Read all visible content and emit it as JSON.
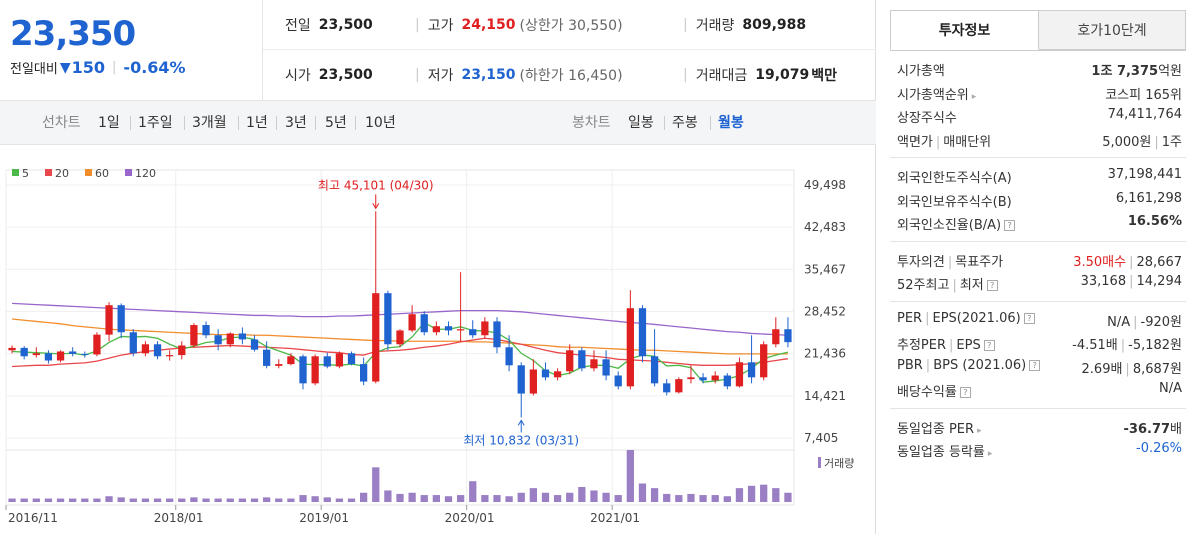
{
  "price": {
    "current": "23,350",
    "diff_label": "전일대비",
    "diff_symbol": "▼",
    "diff_value": "150",
    "diff_rate": "-0.64%"
  },
  "summary": {
    "prev_label": "전일",
    "prev_value": "23,500",
    "high_label": "고가",
    "high_value": "24,150",
    "upper_limit_label": "(상한가",
    "upper_limit_value": "30,550)",
    "volume_label": "거래량",
    "volume_value": "809,988",
    "open_label": "시가",
    "open_value": "23,500",
    "low_label": "저가",
    "low_value": "23,150",
    "lower_limit_label": "(하한가",
    "lower_limit_value": "16,450)",
    "amount_label": "거래대금",
    "amount_value": "19,079",
    "amount_unit": "백만"
  },
  "period_bar": {
    "line_chart_label": "선차트",
    "line_periods": [
      "1일",
      "1주일",
      "3개월",
      "1년",
      "3년",
      "5년",
      "10년"
    ],
    "candle_label": "봉차트",
    "candle_periods": [
      "일봉",
      "주봉",
      "월봉"
    ],
    "active_candle": "월봉"
  },
  "chart_data": {
    "type": "candlestick",
    "legend": [
      {
        "name": "5",
        "color": "#4cb848"
      },
      {
        "name": "20",
        "color": "#e8474b"
      },
      {
        "name": "60",
        "color": "#f28d2c"
      },
      {
        "name": "120",
        "color": "#9966cc"
      }
    ],
    "y_ticks": [
      "49,498",
      "42,483",
      "35,467",
      "28,452",
      "21,436",
      "14,421",
      "7,405"
    ],
    "ylim": [
      7405,
      49498
    ],
    "x_tick_labels": [
      "2016/11",
      "2018/01",
      "2019/01",
      "2020/01",
      "2021/01"
    ],
    "x_tick_index": [
      0,
      14,
      26,
      38,
      50
    ],
    "max_annotation": "최고 45,101 (04/30)",
    "min_annotation": "최저 10,832 (03/31)",
    "volume_label": "거래량",
    "up_color": "#e02020",
    "down_color": "#1e63d0",
    "candles": [
      {
        "o": 22000,
        "h": 22800,
        "l": 21500,
        "c": 22400
      },
      {
        "o": 22400,
        "h": 22700,
        "l": 20500,
        "c": 21000
      },
      {
        "o": 21200,
        "h": 22500,
        "l": 20800,
        "c": 21500
      },
      {
        "o": 21500,
        "h": 22000,
        "l": 19800,
        "c": 20300
      },
      {
        "o": 20300,
        "h": 22000,
        "l": 20000,
        "c": 21800
      },
      {
        "o": 21800,
        "h": 22500,
        "l": 21000,
        "c": 21400
      },
      {
        "o": 21400,
        "h": 21800,
        "l": 20800,
        "c": 21300
      },
      {
        "o": 21300,
        "h": 25000,
        "l": 21000,
        "c": 24600
      },
      {
        "o": 24600,
        "h": 30000,
        "l": 23500,
        "c": 29500
      },
      {
        "o": 29500,
        "h": 29800,
        "l": 24000,
        "c": 25000
      },
      {
        "o": 25000,
        "h": 25500,
        "l": 21000,
        "c": 21500
      },
      {
        "o": 21500,
        "h": 23500,
        "l": 21000,
        "c": 23000
      },
      {
        "o": 23000,
        "h": 23500,
        "l": 20500,
        "c": 21000
      },
      {
        "o": 21000,
        "h": 22000,
        "l": 20300,
        "c": 21200
      },
      {
        "o": 21200,
        "h": 23500,
        "l": 20500,
        "c": 22800
      },
      {
        "o": 22800,
        "h": 26500,
        "l": 22500,
        "c": 26200
      },
      {
        "o": 26200,
        "h": 26800,
        "l": 24000,
        "c": 24500
      },
      {
        "o": 24500,
        "h": 25500,
        "l": 22000,
        "c": 23000
      },
      {
        "o": 23000,
        "h": 25000,
        "l": 22500,
        "c": 24800
      },
      {
        "o": 24800,
        "h": 25800,
        "l": 23000,
        "c": 23800
      },
      {
        "o": 23800,
        "h": 24500,
        "l": 21800,
        "c": 22100
      },
      {
        "o": 22100,
        "h": 23500,
        "l": 19000,
        "c": 19400
      },
      {
        "o": 19400,
        "h": 20500,
        "l": 19000,
        "c": 19700
      },
      {
        "o": 19700,
        "h": 21500,
        "l": 19500,
        "c": 21000
      },
      {
        "o": 21000,
        "h": 21300,
        "l": 15500,
        "c": 16500
      },
      {
        "o": 16500,
        "h": 21300,
        "l": 16200,
        "c": 21000
      },
      {
        "o": 21000,
        "h": 21600,
        "l": 19000,
        "c": 19300
      },
      {
        "o": 19300,
        "h": 21800,
        "l": 19000,
        "c": 21500
      },
      {
        "o": 21500,
        "h": 21800,
        "l": 19500,
        "c": 19700
      },
      {
        "o": 19700,
        "h": 20800,
        "l": 16200,
        "c": 16800
      },
      {
        "o": 16800,
        "h": 45101,
        "l": 16500,
        "c": 31500
      },
      {
        "o": 31500,
        "h": 31900,
        "l": 22000,
        "c": 23000
      },
      {
        "o": 23000,
        "h": 25500,
        "l": 22500,
        "c": 25300
      },
      {
        "o": 25300,
        "h": 29500,
        "l": 25000,
        "c": 28000
      },
      {
        "o": 28000,
        "h": 28500,
        "l": 24500,
        "c": 25000
      },
      {
        "o": 25000,
        "h": 26800,
        "l": 24500,
        "c": 26000
      },
      {
        "o": 26000,
        "h": 26800,
        "l": 24500,
        "c": 25300
      },
      {
        "o": 25300,
        "h": 35000,
        "l": 23500,
        "c": 25500
      },
      {
        "o": 25500,
        "h": 27000,
        "l": 24000,
        "c": 24500
      },
      {
        "o": 24500,
        "h": 27500,
        "l": 24000,
        "c": 26800
      },
      {
        "o": 26800,
        "h": 27500,
        "l": 21500,
        "c": 22500
      },
      {
        "o": 22500,
        "h": 24500,
        "l": 18500,
        "c": 19500
      },
      {
        "o": 19500,
        "h": 20000,
        "l": 10832,
        "c": 14800
      },
      {
        "o": 14800,
        "h": 20500,
        "l": 14500,
        "c": 18800
      },
      {
        "o": 18800,
        "h": 20000,
        "l": 17000,
        "c": 17500
      },
      {
        "o": 17500,
        "h": 19000,
        "l": 17000,
        "c": 18500
      },
      {
        "o": 18500,
        "h": 23000,
        "l": 18000,
        "c": 22000
      },
      {
        "o": 22000,
        "h": 22500,
        "l": 18500,
        "c": 19000
      },
      {
        "o": 19000,
        "h": 22000,
        "l": 18500,
        "c": 20500
      },
      {
        "o": 20500,
        "h": 22000,
        "l": 17000,
        "c": 17800
      },
      {
        "o": 17800,
        "h": 18500,
        "l": 15500,
        "c": 16000
      },
      {
        "o": 16000,
        "h": 32000,
        "l": 15500,
        "c": 29000
      },
      {
        "o": 29000,
        "h": 29500,
        "l": 20000,
        "c": 21000
      },
      {
        "o": 21000,
        "h": 25500,
        "l": 16000,
        "c": 16500
      },
      {
        "o": 16500,
        "h": 17200,
        "l": 14500,
        "c": 15000
      },
      {
        "o": 15000,
        "h": 17500,
        "l": 14800,
        "c": 17200
      },
      {
        "o": 17200,
        "h": 19500,
        "l": 16500,
        "c": 17500
      },
      {
        "o": 17500,
        "h": 18200,
        "l": 16500,
        "c": 17000
      },
      {
        "o": 17000,
        "h": 18500,
        "l": 16500,
        "c": 17800
      },
      {
        "o": 17800,
        "h": 18200,
        "l": 15500,
        "c": 16000
      },
      {
        "o": 16000,
        "h": 20800,
        "l": 15800,
        "c": 20000
      },
      {
        "o": 20000,
        "h": 24500,
        "l": 16500,
        "c": 17500
      },
      {
        "o": 17500,
        "h": 23500,
        "l": 17000,
        "c": 23000
      },
      {
        "o": 23000,
        "h": 27500,
        "l": 22500,
        "c": 25500
      },
      {
        "o": 25500,
        "h": 27500,
        "l": 22500,
        "c": 23350
      }
    ],
    "ma": {
      "5": [
        21800,
        21700,
        21600,
        21500,
        21400,
        21500,
        21200,
        21900,
        23300,
        24300,
        24200,
        24300,
        24000,
        23000,
        22200,
        22700,
        23300,
        23500,
        24100,
        24200,
        23800,
        22600,
        21900,
        21200,
        19700,
        19600,
        19600,
        19500,
        19700,
        19400,
        21600,
        22400,
        22600,
        24200,
        26600,
        25500,
        25500,
        25900,
        25300,
        25200,
        24900,
        23700,
        21500,
        20300,
        18600,
        17800,
        18200,
        19200,
        19500,
        19500,
        19000,
        20600,
        21200,
        21000,
        19400,
        19500,
        19100,
        16700,
        16900,
        17200,
        17800,
        19000,
        20600,
        21200,
        21700
      ],
      "20": [
        19300,
        19400,
        19500,
        19500,
        19700,
        19800,
        19900,
        20200,
        20700,
        21200,
        21500,
        21800,
        22000,
        22200,
        22400,
        22500,
        22600,
        22700,
        22800,
        22700,
        22600,
        22500,
        22400,
        22300,
        22100,
        21900,
        21700,
        21600,
        21300,
        21200,
        21800,
        21900,
        22000,
        22200,
        22500,
        22700,
        23000,
        23400,
        23700,
        24000,
        23800,
        23400,
        23000,
        22500,
        22000,
        21600,
        21400,
        21200,
        21000,
        20800,
        20500,
        20400,
        20300,
        20200,
        20000,
        19800,
        19600,
        19500,
        19500,
        19500,
        19600,
        19800,
        20000,
        20300,
        20600
      ],
      "60": [
        27200,
        27000,
        26800,
        26600,
        26400,
        26100,
        25900,
        25700,
        25500,
        25400,
        25300,
        25200,
        25100,
        25000,
        24900,
        24800,
        24700,
        24600,
        24600,
        24600,
        24500,
        24500,
        24400,
        24300,
        24200,
        24100,
        24000,
        23900,
        23800,
        23700,
        23600,
        23600,
        23500,
        23500,
        23500,
        23500,
        23500,
        23500,
        23400,
        23400,
        23300,
        23200,
        23000,
        22900,
        22800,
        22600,
        22500,
        22500,
        22400,
        22300,
        22200,
        22100,
        22000,
        22000,
        21900,
        21800,
        21700,
        21600,
        21500,
        21400,
        21400,
        21400,
        21400,
        21400,
        21400
      ],
      "120": [
        29800,
        29700,
        29600,
        29500,
        29400,
        29300,
        29200,
        29100,
        29000,
        28900,
        28800,
        28700,
        28600,
        28500,
        28400,
        28300,
        28200,
        28100,
        28000,
        27900,
        27800,
        27800,
        27700,
        27700,
        27600,
        27600,
        27600,
        27700,
        27700,
        27800,
        27900,
        28000,
        28100,
        28200,
        28300,
        28400,
        28500,
        28600,
        28600,
        28600,
        28600,
        28500,
        28400,
        28200,
        28000,
        27800,
        27600,
        27400,
        27200,
        27000,
        26800,
        26600,
        26500,
        26300,
        26100,
        25900,
        25700,
        25500,
        25300,
        25100,
        25000,
        24800,
        24700,
        24600,
        24500
      ]
    },
    "volume": [
      3,
      3,
      3,
      3,
      3,
      3,
      3,
      3,
      5,
      4,
      3,
      3,
      3,
      3,
      3,
      4,
      3,
      3,
      3,
      3,
      3,
      4,
      3,
      3,
      6,
      5,
      4,
      3,
      3,
      8,
      30,
      10,
      7,
      8,
      6,
      6,
      5,
      6,
      18,
      6,
      6,
      5,
      8,
      12,
      8,
      6,
      8,
      13,
      10,
      8,
      6,
      45,
      16,
      12,
      7,
      6,
      7,
      6,
      6,
      5,
      12,
      14,
      15,
      12,
      8
    ]
  },
  "invest_info": {
    "tab_active": "투자정보",
    "tab_inactive": "호가10단계",
    "market_cap_label": "시가총액",
    "market_cap_value_bold": "1조 7,375",
    "market_cap_unit": "억원",
    "market_cap_rank_label": "시가총액순위",
    "market_cap_rank_value": "코스피 165위",
    "listed_shares_label": "상장주식수",
    "listed_shares_value": "74,411,764",
    "par_label": "액면가",
    "trade_unit_label": "매매단위",
    "par_value": "5,000원",
    "trade_unit_value": "1주",
    "foreign_limit_label": "외국인한도주식수(A)",
    "foreign_limit_value": "37,198,441",
    "foreign_hold_label": "외국인보유주식수(B)",
    "foreign_hold_value": "6,161,298",
    "foreign_ratio_label": "외국인소진율(B/A)",
    "foreign_ratio_value": "16.56%",
    "opinion_label": "투자의견",
    "target_label": "목표주가",
    "opinion_value": "3.50매수",
    "target_value": "28,667",
    "week52_high_label": "52주최고",
    "week52_low_label": "최저",
    "week52_high_value": "33,168",
    "week52_low_value": "14,294",
    "per_label": "PER",
    "eps_label": "EPS(2021.06)",
    "per_value": "N/A",
    "eps_value": "-920원",
    "est_per_label": "추정PER",
    "est_eps_label": "EPS",
    "est_per_value": "-4.51배",
    "est_eps_value": "-5,182원",
    "pbr_label": "PBR",
    "bps_label": "BPS (2021.06)",
    "pbr_value": "2.69배",
    "bps_value": "8,687원",
    "dividend_label": "배당수익률",
    "dividend_value": "N/A",
    "sector_per_label": "동일업종 PER",
    "sector_per_value": "-36.77",
    "sector_per_unit": "배",
    "sector_rate_label": "동일업종 등락률",
    "sector_rate_value": "-0.26%"
  }
}
